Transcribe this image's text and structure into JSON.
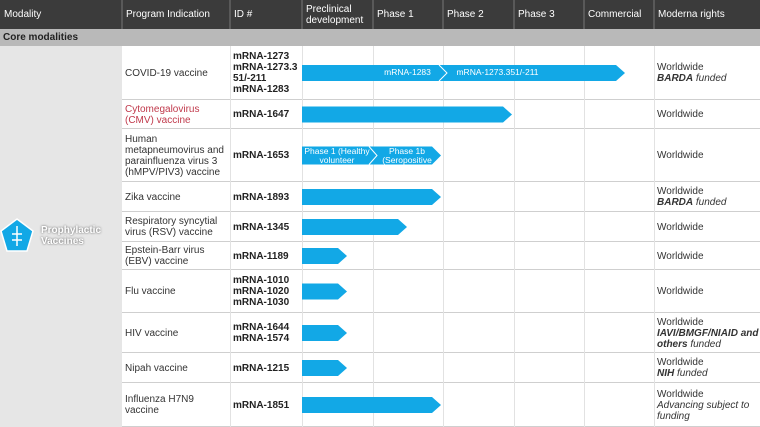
{
  "header": {
    "columns": [
      "Modality",
      "Program Indication",
      "ID #",
      "Preclinical development",
      "Phase 1",
      "Phase 2",
      "Phase 3",
      "Commercial",
      "Moderna rights"
    ]
  },
  "section": "Core modalities",
  "modality": "Prophylactic Vaccines",
  "rows": [
    {
      "program": "COVID-19 vaccine",
      "ids": [
        "mRNA-1273",
        "mRNA-1273.351/-211",
        "mRNA-1283"
      ],
      "arrow_labels": [
        "mRNA-1283",
        "mRNA-1273.351/-211"
      ],
      "rights": "Worldwide",
      "funder": "BARDA",
      "note": "funded"
    },
    {
      "program": "Cytomegalovirus (CMV) vaccine",
      "ids": [
        "mRNA-1647"
      ],
      "rights": "Worldwide"
    },
    {
      "program": "Human metapneumovirus and parainfluenza virus 3 (hMPV/PIV3) vaccine",
      "ids": [
        "mRNA-1653"
      ],
      "arrow_labels": [
        "Phase 1 (Healthy volunteer",
        "Phase 1b (Seropositive"
      ],
      "rights": "Worldwide"
    },
    {
      "program": "Zika vaccine",
      "ids": [
        "mRNA-1893"
      ],
      "rights": "Worldwide",
      "funder": "BARDA",
      "note": "funded"
    },
    {
      "program": "Respiratory syncytial virus (RSV) vaccine",
      "ids": [
        "mRNA-1345"
      ],
      "rights": "Worldwide"
    },
    {
      "program": "Epstein-Barr virus (EBV) vaccine",
      "ids": [
        "mRNA-1189"
      ],
      "rights": "Worldwide"
    },
    {
      "program": "Flu vaccine",
      "ids": [
        "mRNA-1010",
        "mRNA-1020",
        "mRNA-1030"
      ],
      "rights": "Worldwide"
    },
    {
      "program": "HIV vaccine",
      "ids": [
        "mRNA-1644",
        "mRNA-1574"
      ],
      "rights": "Worldwide",
      "funder": "IAVI/BMGF/NIAID and others",
      "note": "funded"
    },
    {
      "program": "Nipah vaccine",
      "ids": [
        "mRNA-1215"
      ],
      "rights": "Worldwide",
      "funder": "NIH",
      "note": "funded"
    },
    {
      "program": "Influenza H7N9 vaccine",
      "ids": [
        "mRNA-1851"
      ],
      "rights": "Worldwide",
      "note": "Advancing subject to funding"
    }
  ]
}
